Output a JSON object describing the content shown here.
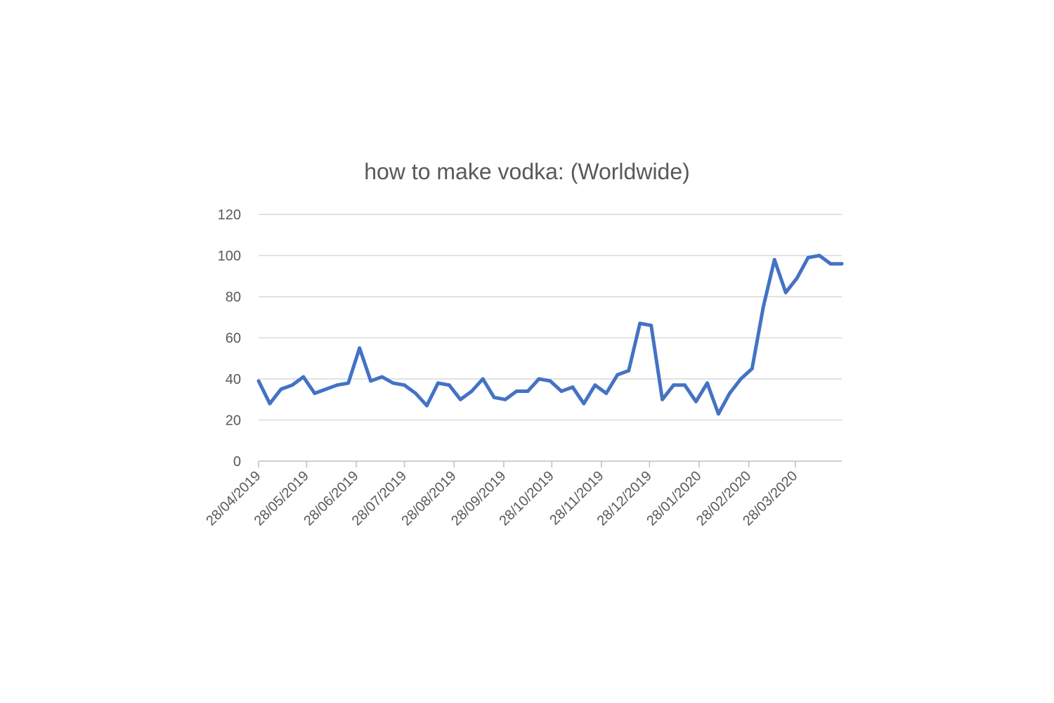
{
  "chart_data": {
    "type": "line",
    "title": "how to make vodka: (Worldwide)",
    "xlabel": "",
    "ylabel": "",
    "ylim": [
      0,
      120
    ],
    "yticks": [
      "0",
      "20",
      "40",
      "60",
      "80",
      "100",
      "120"
    ],
    "xtick_labels": [
      "28/04/2019",
      "28/05/2019",
      "28/06/2019",
      "28/07/2019",
      "28/08/2019",
      "28/09/2019",
      "28/10/2019",
      "28/11/2019",
      "28/12/2019",
      "28/01/2020",
      "28/02/2020",
      "28/03/2020"
    ],
    "grid": "horizontal",
    "legend": "none",
    "colors": {
      "line": "#4472C4",
      "grid": "#D9D9D9",
      "axis": "#BFBFBF",
      "text": "#595959"
    },
    "series": [
      {
        "x": [
          "2019-04-28",
          "2019-05-05",
          "2019-05-12",
          "2019-05-19",
          "2019-05-26",
          "2019-06-02",
          "2019-06-09",
          "2019-06-16",
          "2019-06-23",
          "2019-06-30",
          "2019-07-07",
          "2019-07-14",
          "2019-07-21",
          "2019-07-28",
          "2019-08-04",
          "2019-08-11",
          "2019-08-18",
          "2019-08-25",
          "2019-09-01",
          "2019-09-08",
          "2019-09-15",
          "2019-09-22",
          "2019-09-29",
          "2019-10-06",
          "2019-10-13",
          "2019-10-20",
          "2019-10-27",
          "2019-11-03",
          "2019-11-10",
          "2019-11-17",
          "2019-11-24",
          "2019-12-01",
          "2019-12-08",
          "2019-12-15",
          "2019-12-22",
          "2019-12-29",
          "2020-01-05",
          "2020-01-12",
          "2020-01-19",
          "2020-01-26",
          "2020-02-02",
          "2020-02-09",
          "2020-02-16",
          "2020-02-23",
          "2020-03-01",
          "2020-03-08",
          "2020-03-15",
          "2020-03-22",
          "2020-03-29",
          "2020-04-05",
          "2020-04-12",
          "2020-04-19",
          "2020-04-26"
        ],
        "values": [
          39,
          28,
          35,
          37,
          41,
          33,
          35,
          37,
          38,
          55,
          39,
          41,
          38,
          37,
          33,
          27,
          38,
          37,
          30,
          34,
          40,
          31,
          30,
          34,
          34,
          40,
          39,
          34,
          36,
          28,
          37,
          33,
          42,
          44,
          67,
          66,
          30,
          37,
          37,
          29,
          38,
          23,
          33,
          40,
          45,
          75,
          98,
          82,
          89,
          99,
          100,
          96,
          96
        ]
      }
    ]
  }
}
